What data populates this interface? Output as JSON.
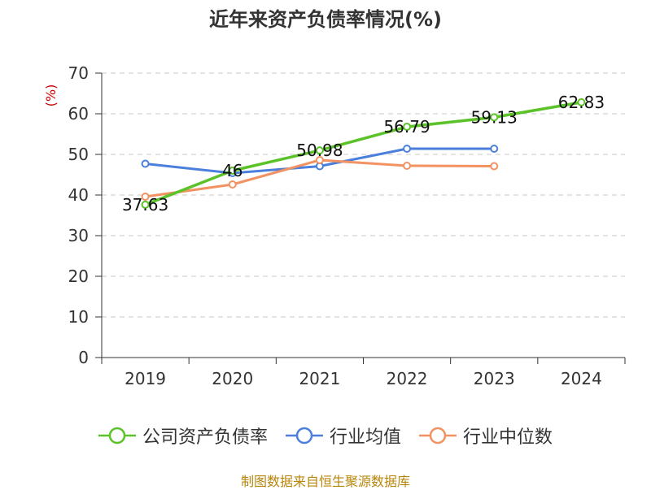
{
  "title": "近年来资产负债率情况(%)",
  "source": "制图数据来自恒生聚源数据库",
  "chart_data": {
    "type": "line",
    "title": "近年来资产负债率情况(%)",
    "xlabel": "",
    "ylabel": "(%)",
    "categories": [
      "2019",
      "2020",
      "2021",
      "2022",
      "2023",
      "2024"
    ],
    "ylim": [
      0,
      70
    ],
    "yticks": [
      0,
      10,
      20,
      30,
      40,
      50,
      60,
      70
    ],
    "grid": true,
    "legend_position": "bottom",
    "series": [
      {
        "name": "公司资产负债率",
        "color": "#5bc329",
        "values": [
          37.63,
          46,
          50.98,
          56.79,
          59.13,
          62.83
        ],
        "labels": [
          "37.63",
          "46",
          "50.98",
          "56.79",
          "59.13",
          "62.83"
        ]
      },
      {
        "name": "行业均值",
        "color": "#4a7fdc",
        "values": [
          47.7,
          45.4,
          47.1,
          51.4,
          51.4,
          null
        ]
      },
      {
        "name": "行业中位数",
        "color": "#f29161",
        "values": [
          39.6,
          42.6,
          48.6,
          47.2,
          47.1,
          null
        ]
      }
    ]
  }
}
